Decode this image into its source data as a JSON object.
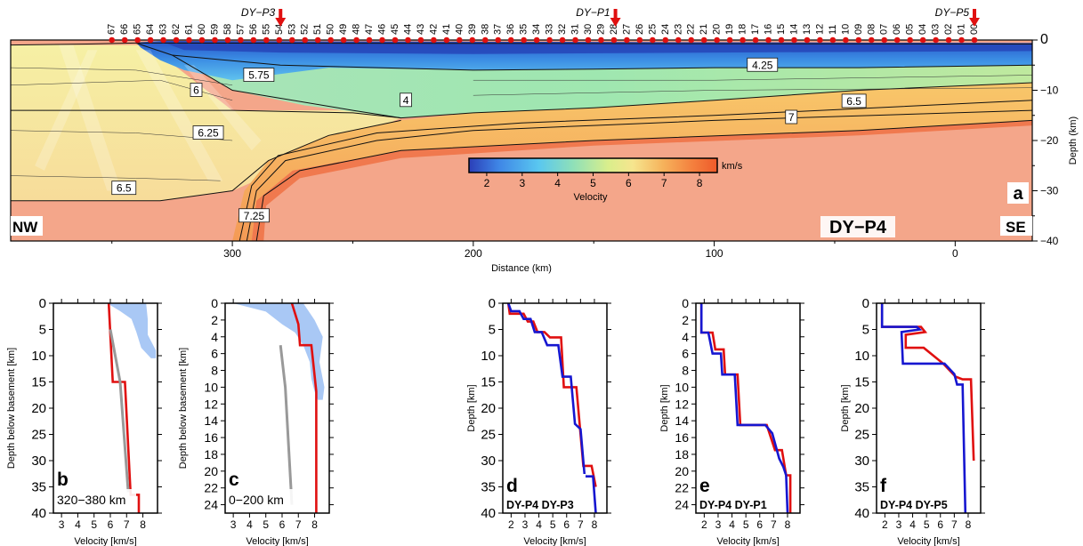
{
  "chart_data": [
    {
      "type": "heatmap",
      "id": "a",
      "panel_label": "a",
      "profile_name": "DY−P4",
      "left_label": "NW",
      "right_label": "SE",
      "xlabel": "Distance (km)",
      "ylabel": "Depth (km)",
      "x_ticks": [
        "300",
        "200",
        "100",
        "0"
      ],
      "x_tick_values": [
        300,
        200,
        100,
        0
      ],
      "y_ticks": [
        "0",
        "−10",
        "−20",
        "−30",
        "−40"
      ],
      "y_tick_values": [
        0,
        -10,
        -20,
        -30,
        -40
      ],
      "xlim": [
        392,
        -32
      ],
      "ylim": [
        -40,
        0
      ],
      "colorbar": {
        "label": "Velocity",
        "unit": "km/s",
        "ticks": [
          "2",
          "3",
          "4",
          "5",
          "6",
          "7",
          "8"
        ],
        "range": [
          1.5,
          8.5
        ]
      },
      "contour_labels": [
        "5.75",
        "6",
        "6.25",
        "6.5",
        "4",
        "4.25",
        "6.5",
        "7",
        "7.25"
      ],
      "contour_label_values": [
        5.75,
        6,
        6.25,
        6.5,
        4,
        4.25,
        6.5,
        7,
        7.25
      ],
      "crossing_labels": [
        "DY−P3",
        "DY−P1",
        "DY−P5"
      ],
      "crossing_x": [
        280,
        141,
        -8
      ],
      "station_labels": [
        "67",
        "66",
        "65",
        "64",
        "63",
        "62",
        "61",
        "60",
        "59",
        "58",
        "57",
        "56",
        "55",
        "54",
        "53",
        "52",
        "51",
        "50",
        "49",
        "48",
        "47",
        "46",
        "45",
        "44",
        "43",
        "42",
        "41",
        "40",
        "39",
        "38",
        "37",
        "36",
        "35",
        "34",
        "33",
        "32",
        "31",
        "30",
        "29",
        "28",
        "27",
        "26",
        "25",
        "24",
        "23",
        "22",
        "21",
        "20",
        "19",
        "18",
        "17",
        "16",
        "15",
        "14",
        "13",
        "12",
        "11",
        "10",
        "09",
        "08",
        "07",
        "06",
        "05",
        "04",
        "03",
        "02",
        "01",
        "00"
      ],
      "station_x_start": 350,
      "station_x_end": -8
    },
    {
      "type": "line",
      "id": "b",
      "panel_label": "b",
      "note": "320−380 km",
      "xlabel": "Velocity [km/s]",
      "ylabel": "Depth below basement [km]",
      "x_ticks": [
        "3",
        "4",
        "5",
        "6",
        "7",
        "8"
      ],
      "y_ticks": [
        "0",
        "5",
        "10",
        "15",
        "20",
        "25",
        "30",
        "35",
        "40"
      ],
      "xlim": [
        2.5,
        8.9
      ],
      "ylim": [
        40,
        0
      ],
      "series": [
        {
          "color": "#e01010",
          "points": [
            [
              5.9,
              0
            ],
            [
              6.15,
              15
            ],
            [
              6.9,
              15
            ],
            [
              7.25,
              36.5
            ],
            [
              7.75,
              36.5
            ],
            [
              7.75,
              40
            ]
          ]
        },
        {
          "color": "#999999",
          "points": [
            [
              6.0,
              5
            ],
            [
              6.6,
              15
            ],
            [
              7.1,
              36
            ]
          ]
        }
      ],
      "band": {
        "color": "#a9c8f5",
        "left": [
          [
            5.8,
            0
          ],
          [
            6.6,
            1.5
          ],
          [
            7.3,
            3
          ],
          [
            7.6,
            5.5
          ],
          [
            7.9,
            8.5
          ],
          [
            8.5,
            10.5
          ]
        ],
        "right": [
          [
            8.2,
            0
          ],
          [
            8.3,
            3
          ],
          [
            8.3,
            6
          ],
          [
            8.8,
            9
          ],
          [
            8.8,
            10.5
          ]
        ]
      }
    },
    {
      "type": "line",
      "id": "c",
      "panel_label": "c",
      "note": "0−200 km",
      "xlabel": "Velocity [km/s]",
      "ylabel": "Depth below basement [km]",
      "x_ticks": [
        "3",
        "4",
        "5",
        "6",
        "7",
        "8"
      ],
      "y_ticks": [
        "0",
        "2",
        "4",
        "6",
        "8",
        "10",
        "12",
        "14",
        "16",
        "18",
        "20",
        "22",
        "24"
      ],
      "xlim": [
        2.5,
        8.9
      ],
      "ylim": [
        25,
        0
      ],
      "series": [
        {
          "color": "#e01010",
          "points": [
            [
              6.6,
              0
            ],
            [
              7.0,
              2.5
            ],
            [
              7.1,
              5.0
            ],
            [
              7.8,
              5.0
            ],
            [
              8.1,
              10.5
            ],
            [
              8.1,
              25
            ]
          ]
        },
        {
          "color": "#999999",
          "points": [
            [
              5.9,
              5
            ],
            [
              6.2,
              10
            ],
            [
              6.6,
              24
            ]
          ]
        }
      ],
      "band": {
        "color": "#a9c8f5",
        "left": [
          [
            3.0,
            0
          ],
          [
            5.0,
            1
          ],
          [
            6.0,
            2.5
          ],
          [
            6.8,
            3.5
          ],
          [
            7.3,
            5
          ],
          [
            7.7,
            7
          ],
          [
            7.8,
            9
          ],
          [
            8.0,
            10.5
          ],
          [
            8.2,
            11.5
          ]
        ],
        "right": [
          [
            7.3,
            0
          ],
          [
            8.0,
            2
          ],
          [
            8.5,
            4
          ],
          [
            8.3,
            7
          ],
          [
            8.6,
            10
          ],
          [
            8.5,
            11.5
          ]
        ]
      }
    },
    {
      "type": "line",
      "id": "d",
      "panel_label": "d",
      "note": "DY-P4 DY-P3",
      "xlabel": "Velocity [km/s]",
      "ylabel": "Depth [km]",
      "x_ticks": [
        "2",
        "3",
        "4",
        "5",
        "6",
        "7",
        "8"
      ],
      "y_ticks": [
        "0",
        "5",
        "10",
        "15",
        "20",
        "25",
        "30",
        "35",
        "40"
      ],
      "xlim": [
        1.4,
        8.9
      ],
      "ylim": [
        40,
        0
      ],
      "series": [
        {
          "name": "DY-P4",
          "color": "#e01010",
          "points": [
            [
              1.8,
              0
            ],
            [
              1.9,
              2
            ],
            [
              2.9,
              2
            ],
            [
              3.2,
              3.5
            ],
            [
              3.6,
              3.5
            ],
            [
              3.9,
              5.5
            ],
            [
              4.4,
              5.5
            ],
            [
              4.8,
              6.5
            ],
            [
              5.6,
              6.5
            ],
            [
              5.8,
              16
            ],
            [
              6.7,
              16
            ],
            [
              7.2,
              31
            ],
            [
              7.8,
              31
            ],
            [
              8.1,
              35
            ]
          ]
        },
        {
          "name": "DY-P3",
          "color": "#1616d0",
          "points": [
            [
              1.8,
              0
            ],
            [
              2.0,
              1.5
            ],
            [
              2.6,
              1.5
            ],
            [
              2.9,
              3
            ],
            [
              3.4,
              3
            ],
            [
              3.7,
              5.5
            ],
            [
              4.2,
              5.5
            ],
            [
              4.6,
              8
            ],
            [
              5.4,
              8
            ],
            [
              5.7,
              14
            ],
            [
              6.3,
              14
            ],
            [
              6.6,
              23
            ],
            [
              7.0,
              24
            ],
            [
              7.3,
              33
            ],
            [
              7.9,
              33
            ],
            [
              8.1,
              40
            ]
          ]
        }
      ]
    },
    {
      "type": "line",
      "id": "e",
      "panel_label": "e",
      "note": "DY-P4 DY-P1",
      "xlabel": "Velocity [km/s]",
      "ylabel": "Depth [km]",
      "x_ticks": [
        "2",
        "3",
        "4",
        "5",
        "6",
        "7",
        "8"
      ],
      "y_ticks": [
        "0",
        "2",
        "4",
        "6",
        "8",
        "10",
        "12",
        "14",
        "16",
        "18",
        "20",
        "22",
        "24"
      ],
      "xlim": [
        1.4,
        8.9
      ],
      "ylim": [
        25,
        0
      ],
      "series": [
        {
          "name": "DY-P4",
          "color": "#e01010",
          "points": [
            [
              1.8,
              0
            ],
            [
              1.8,
              3.5
            ],
            [
              2.6,
              3.5
            ],
            [
              2.8,
              5.5
            ],
            [
              3.4,
              5.5
            ],
            [
              3.5,
              8.5
            ],
            [
              4.4,
              8.5
            ],
            [
              4.6,
              14.5
            ],
            [
              6.5,
              14.5
            ],
            [
              7.1,
              17.5
            ],
            [
              7.6,
              17.5
            ],
            [
              7.9,
              20.5
            ],
            [
              8.2,
              20.5
            ],
            [
              8.2,
              25
            ]
          ]
        },
        {
          "name": "DY-P1",
          "color": "#1616d0",
          "points": [
            [
              1.8,
              0
            ],
            [
              1.8,
              3.5
            ],
            [
              2.3,
              3.5
            ],
            [
              2.6,
              6
            ],
            [
              3.2,
              6
            ],
            [
              3.3,
              8.5
            ],
            [
              4.2,
              8.5
            ],
            [
              4.4,
              14.5
            ],
            [
              6.4,
              14.5
            ],
            [
              6.9,
              15.5
            ],
            [
              7.4,
              18.5
            ],
            [
              7.7,
              19.5
            ],
            [
              7.9,
              20.5
            ],
            [
              8.0,
              25
            ]
          ]
        }
      ]
    },
    {
      "type": "line",
      "id": "f",
      "panel_label": "f",
      "note": "DY-P4 DY-P5",
      "xlabel": "Velocity [km/s]",
      "ylabel": "Depth [km]",
      "x_ticks": [
        "2",
        "3",
        "4",
        "5",
        "6",
        "7",
        "8"
      ],
      "y_ticks": [
        "0",
        "5",
        "10",
        "15",
        "20",
        "25",
        "30",
        "35",
        "40"
      ],
      "xlim": [
        1.4,
        8.9
      ],
      "ylim": [
        40,
        0
      ],
      "series": [
        {
          "name": "DY-P4",
          "color": "#e01010",
          "points": [
            [
              1.8,
              0
            ],
            [
              1.8,
              4.5
            ],
            [
              4.6,
              4.5
            ],
            [
              4.9,
              5.5
            ],
            [
              3.5,
              6
            ],
            [
              3.5,
              8.5
            ],
            [
              4.8,
              8.5
            ],
            [
              6.2,
              11.5
            ],
            [
              7.1,
              14
            ],
            [
              7.6,
              14.5
            ],
            [
              8.2,
              14.5
            ],
            [
              8.4,
              30
            ]
          ]
        },
        {
          "name": "DY-P5",
          "color": "#1616d0",
          "points": [
            [
              1.8,
              0
            ],
            [
              1.8,
              4.5
            ],
            [
              4.3,
              4.5
            ],
            [
              4.5,
              5
            ],
            [
              3.2,
              5.5
            ],
            [
              3.3,
              11.5
            ],
            [
              6.3,
              11.5
            ],
            [
              7.0,
              13.5
            ],
            [
              7.2,
              15.5
            ],
            [
              7.6,
              15.5
            ],
            [
              7.8,
              40
            ]
          ]
        }
      ]
    }
  ]
}
